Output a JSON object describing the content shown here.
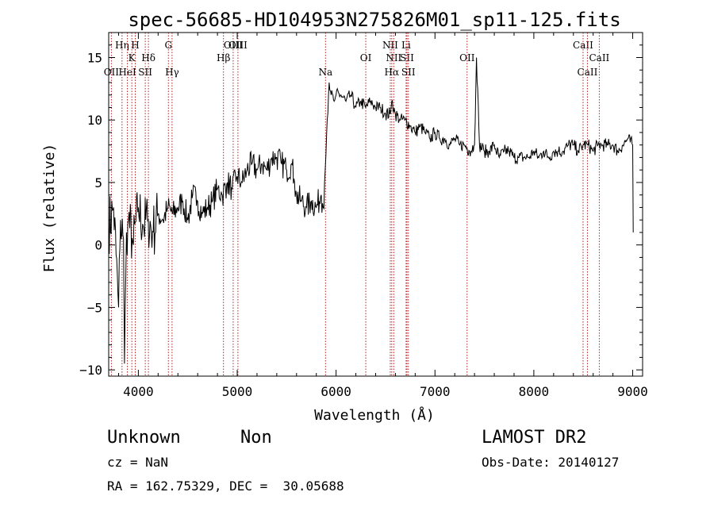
{
  "chart_data": {
    "type": "line",
    "title": "spec-56685-HD104953N275826M01_sp11-125.fits",
    "xlabel": "Wavelength (Å)",
    "ylabel": "Flux (relative)",
    "xlim": [
      3700,
      9100
    ],
    "ylim": [
      -10.5,
      17
    ],
    "xticks": [
      4000,
      5000,
      6000,
      7000,
      8000,
      9000
    ],
    "yticks": [
      -10,
      -5,
      0,
      5,
      10,
      15
    ],
    "grid": false,
    "legend": "none",
    "line_color": "#000000",
    "marker_color": "#b22222",
    "series": [
      {
        "x": [
          3700,
          3750,
          3800,
          3820,
          3850,
          3860,
          3880,
          3900,
          3950,
          4000,
          4050,
          4100,
          4150,
          4200,
          4250,
          4300,
          4350,
          4400,
          4450,
          4500,
          4550,
          4600,
          4650,
          4700,
          4750,
          4800,
          4850,
          4900,
          4950,
          5000,
          5050,
          5100,
          5150,
          5200,
          5250,
          5300,
          5350,
          5400,
          5450,
          5500,
          5550,
          5580,
          5600,
          5650,
          5700,
          5750,
          5800,
          5850,
          5870,
          5890,
          5910,
          5930,
          5950,
          5980,
          6000,
          6050,
          6100,
          6150,
          6200,
          6250,
          6300,
          6350,
          6400,
          6450,
          6500,
          6550,
          6563,
          6600,
          6650,
          6700,
          6750,
          6800,
          6850,
          6900,
          6950,
          7000,
          7050,
          7100,
          7150,
          7200,
          7250,
          7300,
          7350,
          7400,
          7420,
          7450,
          7500,
          7550,
          7600,
          7650,
          7700,
          7750,
          7800,
          7850,
          7900,
          7950,
          8000,
          8050,
          8100,
          8150,
          8200,
          8250,
          8300,
          8350,
          8400,
          8450,
          8500,
          8550,
          8600,
          8650,
          8700,
          8750,
          8800,
          8850,
          8900,
          8950,
          9000,
          9005
        ],
        "y": [
          1.5,
          3.0,
          -5.0,
          2.0,
          0.5,
          -9.5,
          1.0,
          2.0,
          0.0,
          3.0,
          1.5,
          2.0,
          1.0,
          2.5,
          2.0,
          3.0,
          2.5,
          3.0,
          3.5,
          2.0,
          4.0,
          3.5,
          2.5,
          3.0,
          3.5,
          4.5,
          4.0,
          5.0,
          4.5,
          5.5,
          5.0,
          6.0,
          6.5,
          6.0,
          6.5,
          6.0,
          7.0,
          7.0,
          6.5,
          6.0,
          6.5,
          5.0,
          4.0,
          3.5,
          3.0,
          3.5,
          3.0,
          4.0,
          3.0,
          6.0,
          10.0,
          13.0,
          12.0,
          11.5,
          12.0,
          12.0,
          11.5,
          12.0,
          11.0,
          11.5,
          11.0,
          11.5,
          11.0,
          11.0,
          10.5,
          10.5,
          11.5,
          10.5,
          10.0,
          10.0,
          9.5,
          9.0,
          9.5,
          9.0,
          8.5,
          9.0,
          8.5,
          8.5,
          8.0,
          8.5,
          8.0,
          8.0,
          7.5,
          8.0,
          15.0,
          8.0,
          7.5,
          7.5,
          8.0,
          7.0,
          7.5,
          7.5,
          7.0,
          7.0,
          7.0,
          7.0,
          7.5,
          7.0,
          7.5,
          7.0,
          7.5,
          7.5,
          7.5,
          8.0,
          8.0,
          7.5,
          8.0,
          8.0,
          7.5,
          8.0,
          8.0,
          8.0,
          8.0,
          7.5,
          8.0,
          8.5,
          8.0,
          1.0
        ]
      }
    ],
    "line_markers": [
      {
        "label": "OII",
        "x": 3727,
        "row": 2
      },
      {
        "label": "Hη",
        "x": 3835,
        "row": 0
      },
      {
        "label": "HeI",
        "x": 3889,
        "row": 2
      },
      {
        "label": "K",
        "x": 3934,
        "row": 1
      },
      {
        "label": "H",
        "x": 3969,
        "row": 0
      },
      {
        "label": "SII",
        "x": 4070,
        "row": 2
      },
      {
        "label": "Hδ",
        "x": 4102,
        "row": 1
      },
      {
        "label": "G",
        "x": 4304,
        "row": 0
      },
      {
        "label": "Hγ",
        "x": 4341,
        "row": 2
      },
      {
        "label": "Hβ",
        "x": 4861,
        "row": 1
      },
      {
        "label": "OIII",
        "x": 4959,
        "row": 0
      },
      {
        "label": "OIII",
        "x": 5007,
        "row": 0
      },
      {
        "label": "Na",
        "x": 5893,
        "row": 2
      },
      {
        "label": "OI",
        "x": 6300,
        "row": 1
      },
      {
        "label": "NII",
        "x": 6548,
        "row": 0
      },
      {
        "label": "NII",
        "x": 6583,
        "row": 1
      },
      {
        "label": "Hα",
        "x": 6563,
        "row": 2
      },
      {
        "label": "Li",
        "x": 6708,
        "row": 0
      },
      {
        "label": "SII",
        "x": 6717,
        "row": 1
      },
      {
        "label": "SII",
        "x": 6731,
        "row": 2
      },
      {
        "label": "OII",
        "x": 7325,
        "row": 1
      },
      {
        "label": "CaII",
        "x": 8498,
        "row": 0
      },
      {
        "label": "CaII",
        "x": 8542,
        "row": 2
      },
      {
        "label": "CaII",
        "x": 8662,
        "row": 1
      }
    ]
  },
  "info": {
    "class": "Unknown",
    "subclass": "Non",
    "survey": "LAMOST DR2",
    "cz": "cz = NaN",
    "obs_date": "Obs-Date: 20140127",
    "coords": "RA = 162.75329, DEC =  30.05688"
  }
}
